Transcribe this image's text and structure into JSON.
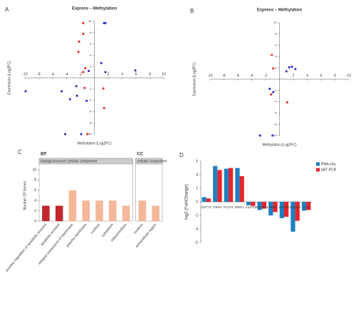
{
  "chart_data": [
    {
      "type": "scatter",
      "panel_label": "A",
      "title": "Express – Methylation",
      "x_label": "Methylation (Log2FC)",
      "y_label": "Expression (Log2FC)",
      "xlim": [
        -10,
        10
      ],
      "ylim": [
        -10,
        10
      ],
      "xticks": [
        -10,
        -8,
        -6,
        -4,
        -2,
        2,
        4,
        6,
        8,
        10
      ],
      "yticks": [
        -10,
        -8,
        -6,
        -4,
        -2,
        2,
        4,
        6,
        8,
        10
      ],
      "series": [
        {
          "color": "#e8262a",
          "x": [
            -1.6,
            -1.6,
            -2.2,
            -2.3,
            -1.3,
            -1.6,
            -1.4,
            1.3,
            1.4,
            -1
          ],
          "y": [
            9.7,
            7.8,
            6.4,
            4.6,
            1.7,
            1,
            -1.8,
            -1.9,
            -5.4,
            -10
          ]
        },
        {
          "color": "#2a2ccf",
          "x": [
            1.4,
            1.6,
            1,
            1.6,
            -0.8,
            5.9,
            -9.9,
            -4.7,
            -2.6,
            -2.5,
            -1.1,
            -3.5,
            -4.2,
            -1.9
          ],
          "y": [
            9.7,
            9.7,
            2.6,
            1,
            1.2,
            1.3,
            -2.4,
            -2.4,
            -1.5,
            -3.2,
            -4.1,
            -3.8,
            -10,
            -10
          ]
        }
      ]
    },
    {
      "type": "scatter",
      "panel_label": "B",
      "title": "Express – Methylation",
      "x_label": "Methylation (Log2FC)",
      "y_label": "Expression (Log2FC)",
      "xlim": [
        -10,
        10
      ],
      "ylim": [
        -10,
        10
      ],
      "xticks": [
        -10,
        -8,
        -6,
        -4,
        -2,
        2,
        4,
        6,
        8,
        10
      ],
      "yticks": [
        -10,
        -8,
        -6,
        -4,
        -2,
        2,
        4,
        6,
        8,
        10
      ],
      "series": [
        {
          "color": "#e8262a",
          "x": [
            -1.1,
            -0.9,
            -1.2,
            1.1
          ],
          "y": [
            4.3,
            1.9,
            -2.7,
            -4.1
          ]
        },
        {
          "color": "#2a2ccf",
          "x": [
            1.4,
            1.8,
            2.3,
            1,
            -1.4,
            -0.9,
            -1,
            -2.8
          ],
          "y": [
            2.1,
            2.2,
            1.8,
            1.4,
            -1.7,
            -2.3,
            -10,
            -10
          ]
        }
      ]
    },
    {
      "type": "facet_bar",
      "panel_label": "C",
      "y_label": "Number Of Genes",
      "ylim": [
        0,
        10
      ],
      "yticks": [
        0,
        2,
        4,
        6,
        8,
        10
      ],
      "facets": [
        {
          "title": "BP",
          "groups": [
            {
              "label": "biological process",
              "color": "#c1272d",
              "categories": [
                "positive regulation of apoptotic process",
                "apoptotic process"
              ],
              "values": [
                3,
                3
              ]
            },
            {
              "label": "cellular component",
              "color": "#f4b899",
              "categories": [
                "integral component of membrane",
                "plasma membrane",
                "nucleus",
                "cytoplasm",
                "mitochondrion"
              ],
              "values": [
                6,
                4,
                4,
                4,
                3
              ]
            }
          ]
        },
        {
          "title": "CC",
          "groups": [
            {
              "label": "cellular component",
              "color": "#f4b899",
              "categories": [
                "nucleus",
                "extracellular region"
              ],
              "values": [
                4,
                3
              ]
            }
          ]
        }
      ]
    },
    {
      "type": "grouped_bar",
      "panel_label": "D",
      "y_label": "log2 (FoldChange)",
      "ylim": [
        -6,
        6
      ],
      "yticks": [
        -6,
        -4,
        -2,
        0,
        2,
        4,
        6
      ],
      "categories": [
        "GSTT1",
        "PSPH",
        "FLOT1",
        "IMPA1",
        "Cox7c2",
        "PLXNA4",
        "PDE4",
        "LRFN1",
        "SULT1A",
        "Crot"
      ],
      "series": [
        {
          "name": "RNA-seq",
          "color": "#1f7fc1",
          "values": [
            0.7,
            5.3,
            4.9,
            5,
            -0.5,
            -1.2,
            -2,
            -2.4,
            -4.4,
            -1.3
          ]
        },
        {
          "name": "qRT-PCR",
          "color": "#e4262c",
          "values": [
            0.5,
            4.7,
            5,
            3.8,
            -0.6,
            -1,
            -1.5,
            -2.2,
            -2.8,
            -1.2
          ]
        }
      ]
    }
  ]
}
